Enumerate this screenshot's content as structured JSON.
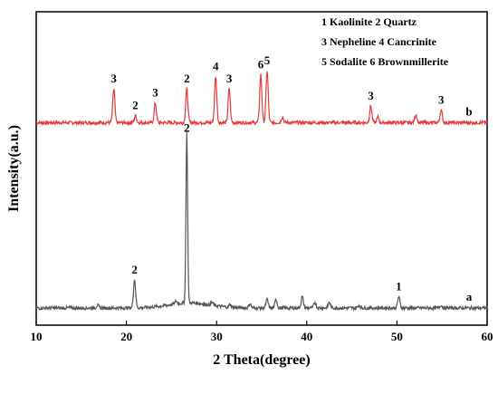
{
  "chart_data": {
    "type": "line",
    "xlabel": "2 Theta(degree)",
    "ylabel": "Intensity(a.u.)",
    "xlim": [
      10,
      60
    ],
    "xticks": [
      10,
      20,
      30,
      40,
      50,
      60
    ],
    "grid": false,
    "legend_position": "top-right",
    "legend_lines": [
      "1 Kaolinite  2 Quartz",
      "3 Nepheline 4 Cancrinite",
      "5 Sodalite   6 Brownmillerite"
    ],
    "series": [
      {
        "name": "b",
        "color": "#e8393a",
        "baseline": 0.66,
        "peaks": [
          {
            "x": 18.6,
            "height": 0.12,
            "label": "3"
          },
          {
            "x": 21.0,
            "height": 0.025,
            "label": "2"
          },
          {
            "x": 23.2,
            "height": 0.07,
            "label": "3"
          },
          {
            "x": 26.7,
            "height": 0.12,
            "label": "2"
          },
          {
            "x": 29.9,
            "height": 0.165,
            "label": "4"
          },
          {
            "x": 31.4,
            "height": 0.12,
            "label": "3"
          },
          {
            "x": 34.9,
            "height": 0.17,
            "label": "6"
          },
          {
            "x": 35.6,
            "height": 0.185,
            "label": "5"
          },
          {
            "x": 37.3,
            "height": 0.02,
            "label": ""
          },
          {
            "x": 47.1,
            "height": 0.06,
            "label": "3"
          },
          {
            "x": 47.9,
            "height": 0.02,
            "label": ""
          },
          {
            "x": 52.1,
            "height": 0.03,
            "label": ""
          },
          {
            "x": 54.9,
            "height": 0.045,
            "label": "3"
          }
        ]
      },
      {
        "name": "a",
        "color": "#555555",
        "baseline": 0.0,
        "peaks": [
          {
            "x": 16.8,
            "height": 0.01,
            "label": ""
          },
          {
            "x": 20.9,
            "height": 0.1,
            "label": "2"
          },
          {
            "x": 25.5,
            "height": 0.01,
            "label": ""
          },
          {
            "x": 26.7,
            "height": 0.605,
            "label": "2"
          },
          {
            "x": 29.5,
            "height": 0.01,
            "label": ""
          },
          {
            "x": 31.5,
            "height": 0.01,
            "label": ""
          },
          {
            "x": 33.7,
            "height": 0.015,
            "label": ""
          },
          {
            "x": 35.6,
            "height": 0.03,
            "label": ""
          },
          {
            "x": 36.6,
            "height": 0.03,
            "label": ""
          },
          {
            "x": 39.5,
            "height": 0.04,
            "label": ""
          },
          {
            "x": 40.9,
            "height": 0.02,
            "label": ""
          },
          {
            "x": 42.5,
            "height": 0.02,
            "label": ""
          },
          {
            "x": 45.8,
            "height": 0.01,
            "label": ""
          },
          {
            "x": 50.2,
            "height": 0.04,
            "label": "1"
          },
          {
            "x": 54.9,
            "height": 0.01,
            "label": ""
          }
        ]
      }
    ]
  }
}
